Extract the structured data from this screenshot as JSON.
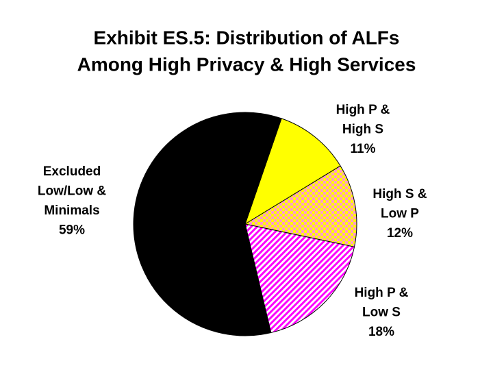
{
  "chart_data": {
    "type": "pie",
    "title": [
      "Exhibit ES.5: Distribution of ALFs",
      "Among High Privacy & High Services"
    ],
    "categories": [
      [
        "High P &",
        "High S"
      ],
      [
        "High S &",
        "Low P"
      ],
      [
        "High P &",
        "Low S"
      ],
      [
        "Excluded",
        "Low/Low &",
        "Minimals"
      ]
    ],
    "values": [
      11,
      12,
      18,
      59
    ],
    "value_labels": [
      "11%",
      "12%",
      "18%",
      "59%"
    ],
    "colors": [
      "#ffff00",
      "#ff99cc",
      "#ff00ff",
      "#000000"
    ],
    "patterns": [
      "solid",
      "checker",
      "stripes",
      "solid"
    ]
  }
}
